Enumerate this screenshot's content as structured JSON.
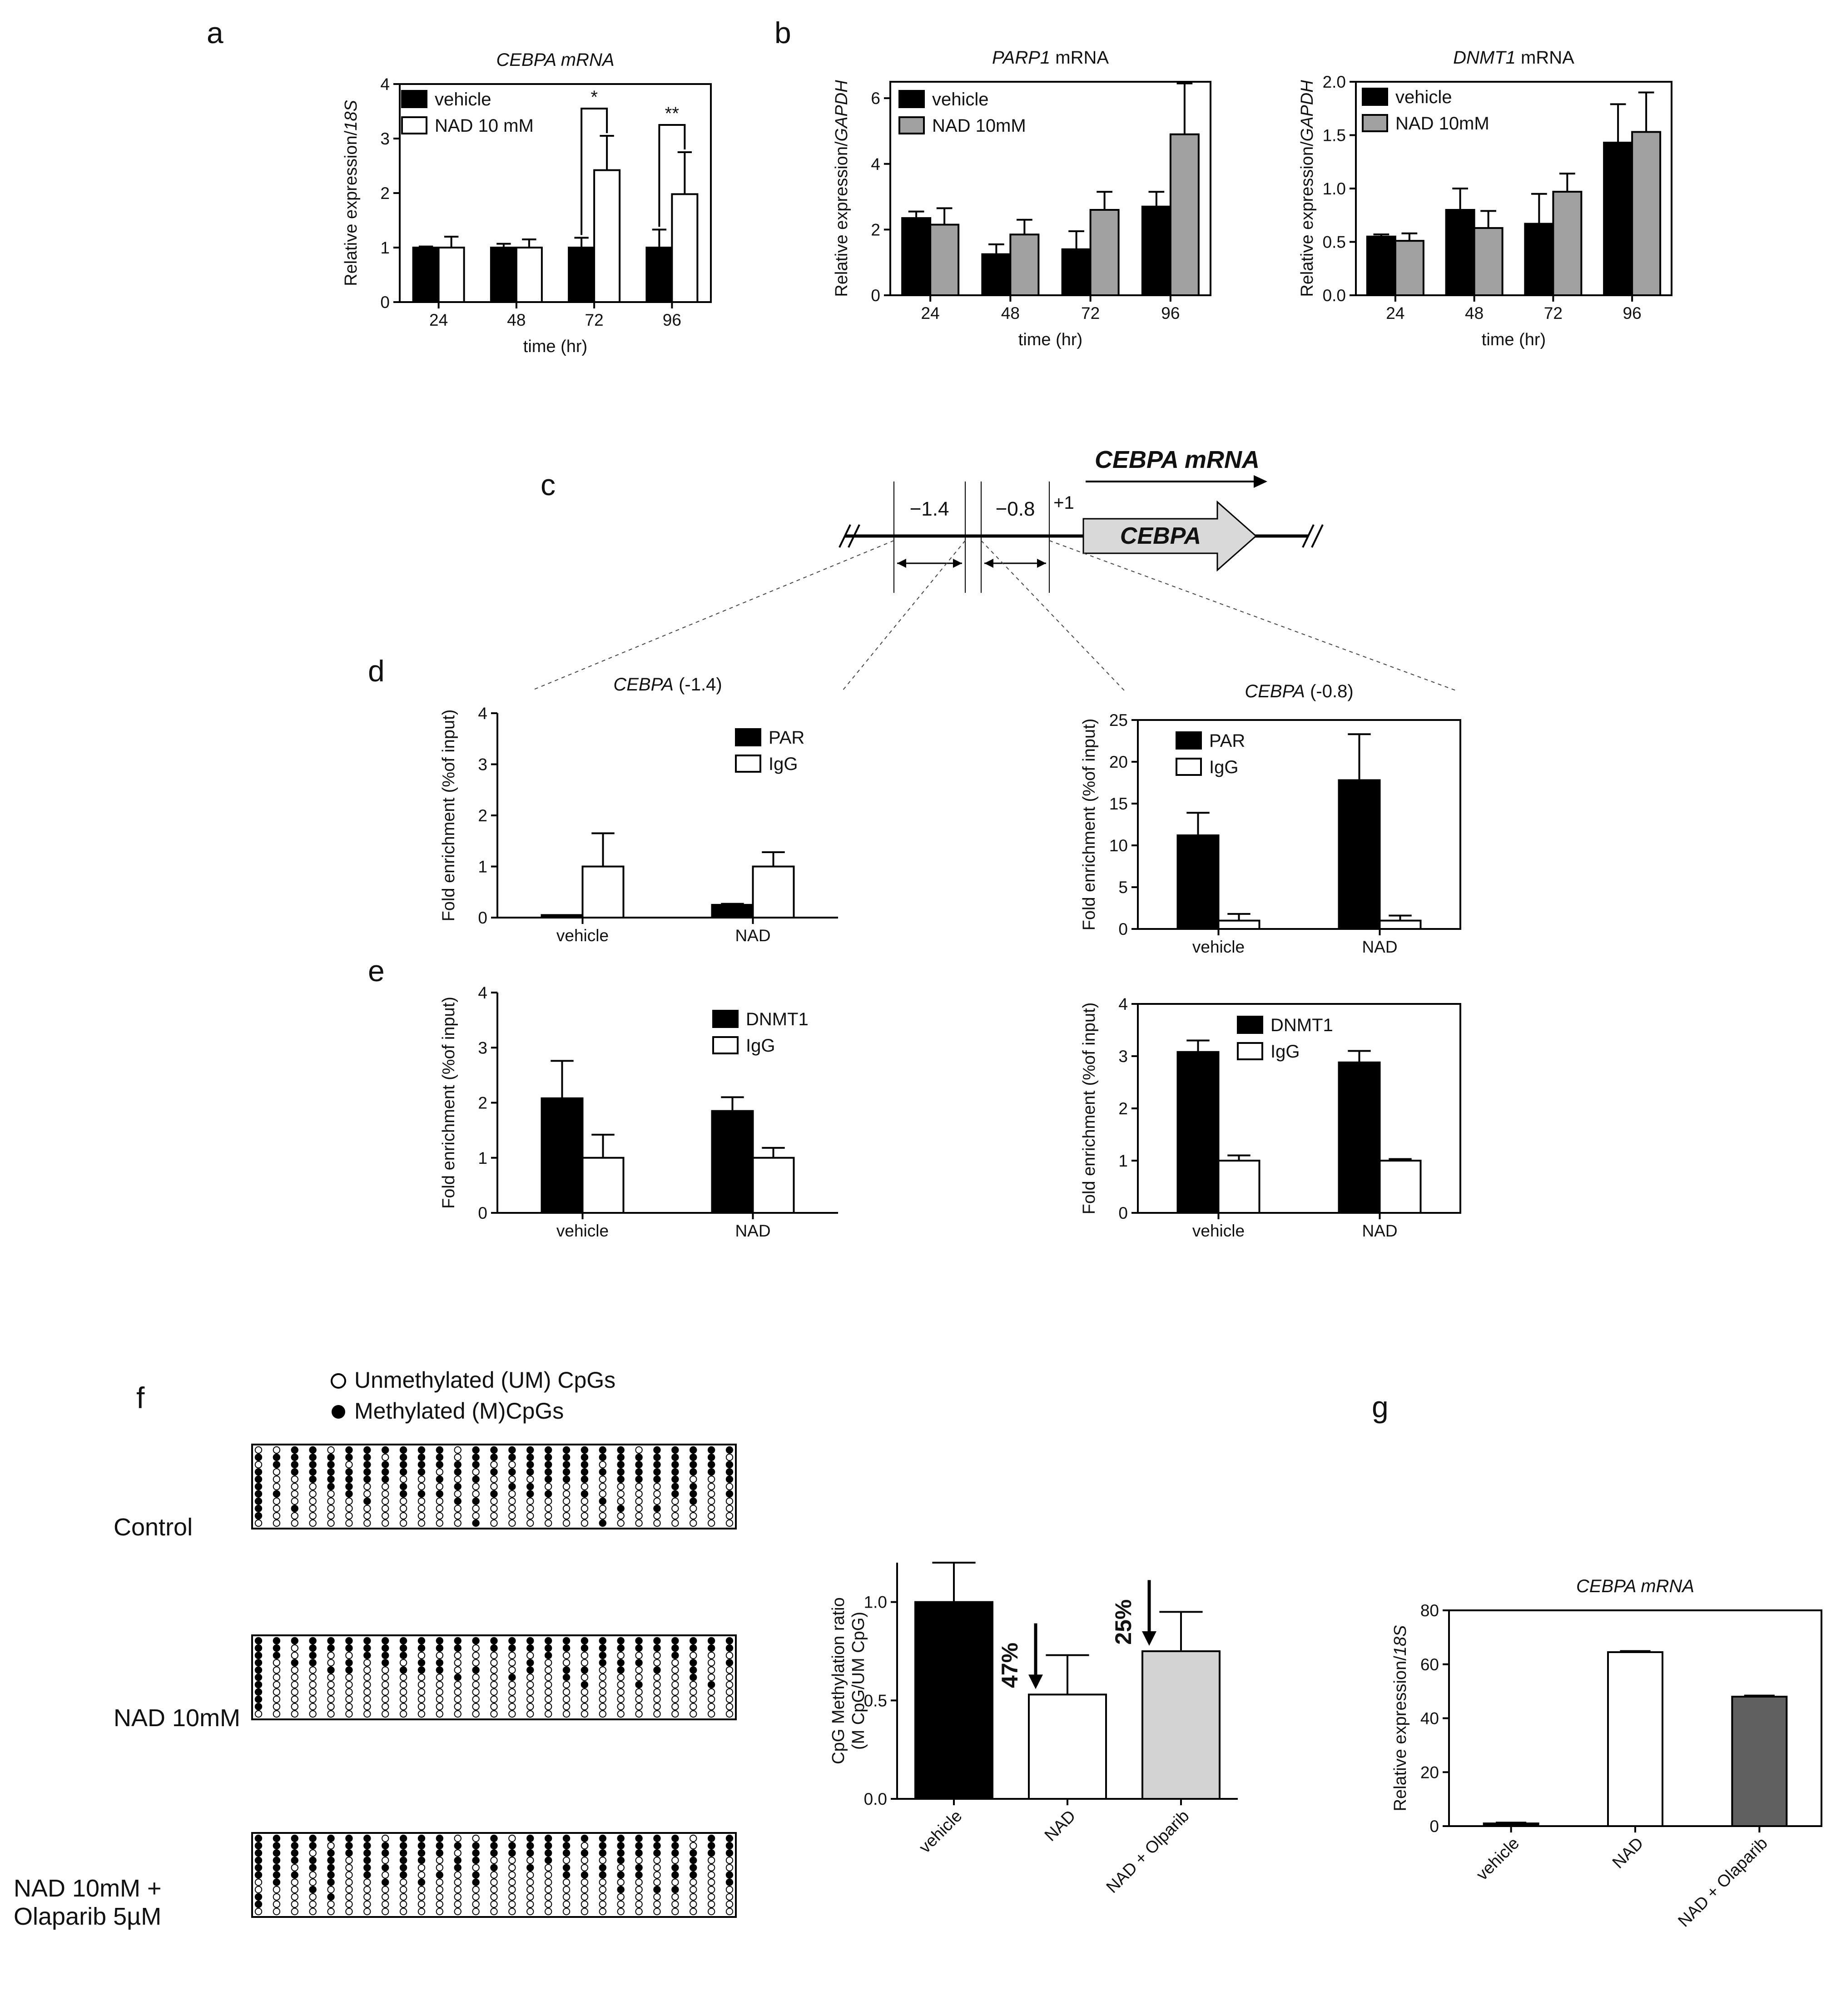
{
  "labels": {
    "a": "a",
    "b": "b",
    "c": "c",
    "d": "d",
    "e": "e",
    "f": "f",
    "g": "g"
  },
  "colors": {
    "black": "#000000",
    "white": "#ffffff",
    "gray": "#a0a0a0",
    "lightgray": "#d3d3d3",
    "darkgray": "#606060",
    "arrowfill": "#d9d9d9"
  },
  "gene_map": {
    "mrna_label": "CEBPA mRNA",
    "gene": "CEBPA",
    "region_left": "−1.4",
    "region_right": "−0.8",
    "tss": "+1"
  },
  "methylation": {
    "legend_unmethylated": "Unmethylated (UM) CpGs",
    "legend_methylated": "Methylated (M)CpGs",
    "groups": [
      {
        "name": "Control",
        "lines": [
          "Control"
        ]
      },
      {
        "name": "NAD 10mM",
        "lines": [
          "NAD 10mM"
        ]
      },
      {
        "name": "NAD 10mM + Olaparib 5µM",
        "lines": [
          "NAD 10mM +",
          "Olaparib 5µM"
        ]
      }
    ]
  },
  "chart_data": [
    {
      "id": "a",
      "type": "bar",
      "title": "CEBPA mRNA",
      "xlabel": "time (hr)",
      "ylabel": "Relative expression/18S",
      "categories": [
        "24",
        "48",
        "72",
        "96"
      ],
      "ylim": [
        0,
        4
      ],
      "yticks": [
        0,
        1,
        2,
        3,
        4
      ],
      "series": [
        {
          "name": "vehicle",
          "values": [
            1.0,
            1.0,
            1.0,
            1.0
          ],
          "errors": [
            0.02,
            0.07,
            0.18,
            0.33
          ],
          "color": "#000000"
        },
        {
          "name": "NAD 10 mM",
          "values": [
            1.0,
            1.0,
            2.42,
            1.98
          ],
          "errors": [
            0.2,
            0.15,
            0.63,
            0.77
          ],
          "color": "#ffffff"
        }
      ],
      "significance": [
        {
          "category": "72",
          "label": "*"
        },
        {
          "category": "96",
          "label": "**"
        }
      ],
      "legend": "top-left"
    },
    {
      "id": "b1",
      "type": "bar",
      "title": "PARP1 mRNA",
      "xlabel": "time (hr)",
      "ylabel": "Relative expression/GAPDH",
      "categories": [
        "24",
        "48",
        "72",
        "96"
      ],
      "ylim": [
        0,
        6.5
      ],
      "yticks": [
        0,
        2,
        4,
        6
      ],
      "series": [
        {
          "name": "vehicle",
          "values": [
            2.35,
            1.25,
            1.4,
            2.7
          ],
          "errors": [
            0.2,
            0.3,
            0.55,
            0.45
          ],
          "color": "#000000"
        },
        {
          "name": "NAD 10mM",
          "values": [
            2.15,
            1.85,
            2.6,
            4.9
          ],
          "errors": [
            0.5,
            0.45,
            0.55,
            1.55
          ],
          "color": "#a0a0a0"
        }
      ],
      "legend": "top-left"
    },
    {
      "id": "b2",
      "type": "bar",
      "title": "DNMT1 mRNA",
      "xlabel": "time (hr)",
      "ylabel": "Relative expression/GAPDH",
      "categories": [
        "24",
        "48",
        "72",
        "96"
      ],
      "ylim": [
        0,
        2.0
      ],
      "yticks": [
        "0.0",
        "0.5",
        "1.0",
        "1.5",
        "2.0"
      ],
      "series": [
        {
          "name": "vehicle",
          "values": [
            0.55,
            0.8,
            0.67,
            1.43
          ],
          "errors": [
            0.02,
            0.2,
            0.28,
            0.36
          ],
          "color": "#000000"
        },
        {
          "name": "NAD 10mM",
          "values": [
            0.51,
            0.63,
            0.97,
            1.53
          ],
          "errors": [
            0.07,
            0.16,
            0.17,
            0.37
          ],
          "color": "#a0a0a0"
        }
      ],
      "legend": "top-left"
    },
    {
      "id": "d1",
      "type": "bar",
      "title": "CEBPA (-1.4)",
      "xlabel": "",
      "ylabel": "Fold enrichment (%of input)",
      "categories": [
        "vehicle",
        "NAD"
      ],
      "ylim": [
        0,
        4
      ],
      "yticks": [
        0,
        1,
        2,
        3,
        4
      ],
      "series": [
        {
          "name": "PAR",
          "values": [
            0.05,
            0.25
          ],
          "errors": [
            0.0,
            0.02
          ],
          "color": "#000000"
        },
        {
          "name": "IgG",
          "values": [
            1.0,
            1.0
          ],
          "errors": [
            0.65,
            0.28
          ],
          "color": "#ffffff"
        }
      ],
      "legend": "top-right"
    },
    {
      "id": "d2",
      "type": "bar",
      "title": "CEBPA (-0.8)",
      "xlabel": "",
      "ylabel": "Fold enrichment (%of input)",
      "categories": [
        "vehicle",
        "NAD"
      ],
      "ylim": [
        0,
        25
      ],
      "yticks": [
        0,
        5,
        10,
        15,
        20,
        25
      ],
      "series": [
        {
          "name": "PAR",
          "values": [
            11.2,
            17.8
          ],
          "errors": [
            2.7,
            5.5
          ],
          "color": "#000000"
        },
        {
          "name": "IgG",
          "values": [
            1.0,
            1.0
          ],
          "errors": [
            0.8,
            0.6
          ],
          "color": "#ffffff"
        }
      ],
      "legend": "top-left"
    },
    {
      "id": "e1",
      "type": "bar",
      "title": "",
      "xlabel": "",
      "ylabel": "Fold enrichment (%of input)",
      "categories": [
        "vehicle",
        "NAD"
      ],
      "ylim": [
        0,
        4
      ],
      "yticks": [
        0,
        1,
        2,
        3,
        4
      ],
      "series": [
        {
          "name": "DNMT1",
          "values": [
            2.08,
            1.85
          ],
          "errors": [
            0.68,
            0.25
          ],
          "color": "#000000"
        },
        {
          "name": "IgG",
          "values": [
            1.0,
            1.0
          ],
          "errors": [
            0.42,
            0.18
          ],
          "color": "#ffffff"
        }
      ],
      "legend": "top-right"
    },
    {
      "id": "e2",
      "type": "bar",
      "title": "",
      "xlabel": "",
      "ylabel": "Fold enrichment (%of input)",
      "categories": [
        "vehicle",
        "NAD"
      ],
      "ylim": [
        0,
        4
      ],
      "yticks": [
        0,
        1,
        2,
        3,
        4
      ],
      "series": [
        {
          "name": "DNMT1",
          "values": [
            3.08,
            2.88
          ],
          "errors": [
            0.22,
            0.22
          ],
          "color": "#000000"
        },
        {
          "name": "IgG",
          "values": [
            1.0,
            1.0
          ],
          "errors": [
            0.1,
            0.03
          ],
          "color": "#ffffff"
        }
      ],
      "legend": "top-left"
    },
    {
      "id": "f",
      "type": "bar",
      "title": "",
      "xlabel": "",
      "ylabel": "CpG Methylation ratio (M CpG/UM CpG)",
      "ylabel_lines": [
        "CpG Methylation ratio",
        "(M CpG/UM CpG)"
      ],
      "categories": [
        "vehicle",
        "NAD",
        "NAD + Olparib"
      ],
      "ylim": [
        0,
        1.2
      ],
      "yticks": [
        "0.0",
        "0.5",
        "1.0"
      ],
      "series": [
        {
          "name": "",
          "values": [
            1.0,
            0.53,
            0.75
          ],
          "errors": [
            0.2,
            0.2,
            0.2
          ],
          "colors": [
            "#000000",
            "#ffffff",
            "#d3d3d3"
          ]
        }
      ],
      "annotations": [
        {
          "category": "NAD",
          "label": "47%"
        },
        {
          "category": "NAD + Olparib",
          "label": "25%"
        }
      ]
    },
    {
      "id": "g",
      "type": "bar",
      "title": "CEBPA mRNA",
      "xlabel": "",
      "ylabel": "Relative expression/18S",
      "categories": [
        "vehicle",
        "NAD",
        "NAD + Olaparib"
      ],
      "ylim": [
        0,
        80
      ],
      "yticks": [
        0,
        20,
        40,
        60,
        80
      ],
      "series": [
        {
          "name": "",
          "values": [
            1.0,
            64.5,
            48.0
          ],
          "errors": [
            0.3,
            0.4,
            0.4
          ],
          "colors": [
            "#000000",
            "#ffffff",
            "#606060"
          ]
        }
      ]
    }
  ]
}
